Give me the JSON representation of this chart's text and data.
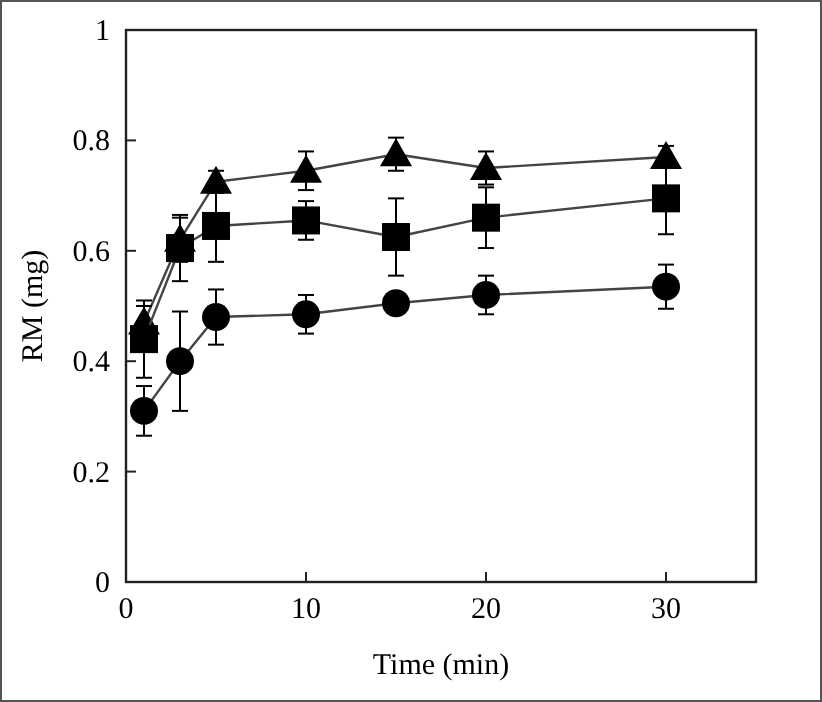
{
  "chart_data": {
    "type": "line",
    "xlabel": "Time (min)",
    "ylabel": "RM (mg)",
    "x": [
      1,
      3,
      5,
      10,
      15,
      20,
      30
    ],
    "xlim": [
      0,
      35
    ],
    "xticks": [
      0,
      10,
      20,
      30
    ],
    "ylim": [
      0,
      1
    ],
    "yticks": [
      0,
      0.2,
      0.4,
      0.6,
      0.8,
      1
    ],
    "grid": false,
    "line_style": "solid",
    "series": [
      {
        "color": "#000000",
        "marker": "triangle",
        "values": [
          0.47,
          0.62,
          0.725,
          0.745,
          0.775,
          0.75,
          0.77
        ],
        "errors": [
          0.03,
          0.04,
          0.02,
          0.035,
          0.03,
          0.03,
          0.02
        ]
      },
      {
        "color": "#000000",
        "marker": "square",
        "values": [
          0.44,
          0.605,
          0.645,
          0.655,
          0.625,
          0.66,
          0.695
        ],
        "errors": [
          0.07,
          0.06,
          0.065,
          0.035,
          0.07,
          0.055,
          0.065
        ]
      },
      {
        "color": "#000000",
        "marker": "circle",
        "values": [
          0.31,
          0.4,
          0.48,
          0.485,
          0.505,
          0.52,
          0.535
        ],
        "errors": [
          0.045,
          0.09,
          0.05,
          0.035,
          null,
          0.035,
          0.04
        ]
      }
    ]
  }
}
